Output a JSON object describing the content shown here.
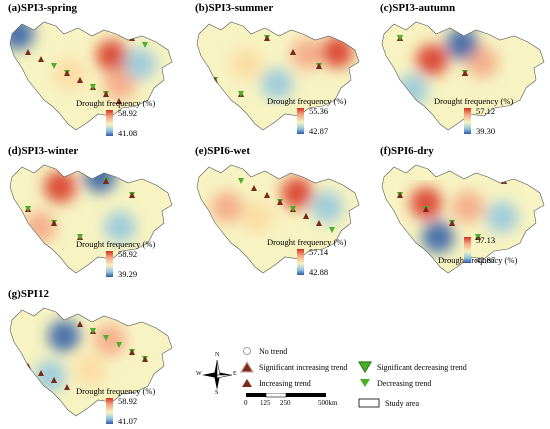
{
  "panels": [
    {
      "id": "a",
      "title": "(a)SPI3-spring",
      "legend_title": "Drought frequency (%)",
      "max": "58.92",
      "min": "41.08"
    },
    {
      "id": "b",
      "title": "(b)SPI3-summer",
      "legend_title": "Drought frequency (%)",
      "max": "55.36",
      "min": "42.87"
    },
    {
      "id": "c",
      "title": "(c)SPI3-autumn",
      "legend_title": "Drought frequency (%)",
      "max": "57.12",
      "min": "39.30"
    },
    {
      "id": "d",
      "title": "(d)SPI3-winter",
      "legend_title": "Drought frequency (%)",
      "max": "58.92",
      "min": "39.29"
    },
    {
      "id": "e",
      "title": "(e)SPI6-wet",
      "legend_title": "Drought frequency (%)",
      "max": "57.14",
      "min": "42.88"
    },
    {
      "id": "f",
      "title": "(f)SPI6-dry",
      "legend_title": "Drought frequency (%)",
      "max": "57.13",
      "min": "42.87"
    },
    {
      "id": "g",
      "title": "(g)SPI12",
      "legend_title": "Drought frequency (%)",
      "max": "58.92",
      "min": "41.07"
    }
  ],
  "legend": {
    "no_trend": "No trend",
    "sig_increasing": "Significant increasing trend",
    "increasing": "Increasing trend",
    "sig_decreasing": "Significant decreasing trend",
    "decreasing": "Decreasing trend",
    "study_area": "Study area"
  },
  "compass": {
    "n": "N",
    "s": "S",
    "e": "E",
    "w": "W"
  },
  "scalebar": {
    "t0": "0",
    "t1": "125",
    "t2": "250",
    "t3": "500km"
  },
  "colors": {
    "high": "#d7301f",
    "mid": "#f7f3c2",
    "low": "#2b5aa6",
    "increasing_marker": "#7a2a1a",
    "decreasing_marker": "#4caf2a"
  }
}
